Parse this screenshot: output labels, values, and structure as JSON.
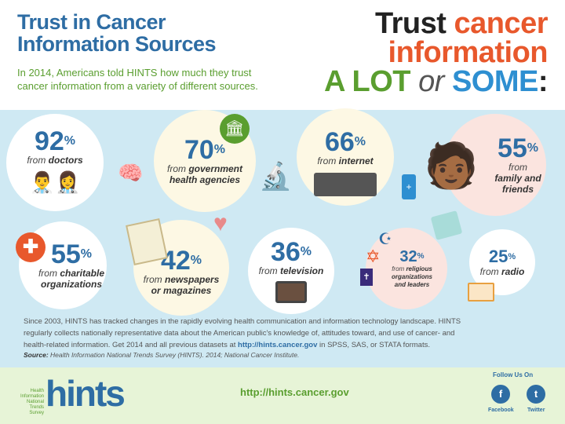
{
  "header": {
    "title_line1": "Trust in Cancer",
    "title_line2": "Information Sources",
    "intro": "In 2014, Americans told HINTS how much they trust cancer information from a variety of different sources.",
    "headline": {
      "w1": "Trust",
      "w2": "cancer",
      "w3": "information",
      "w4": "A LOT",
      "w5": "or",
      "w6": "SOME",
      "w7": ":"
    }
  },
  "sources": [
    {
      "pct": "92",
      "unit": "%",
      "from": "from",
      "label": "doctors"
    },
    {
      "pct": "70",
      "unit": "%",
      "from": "from",
      "label": "government health agencies"
    },
    {
      "pct": "66",
      "unit": "%",
      "from": "from",
      "label": "internet"
    },
    {
      "pct": "55",
      "unit": "%",
      "from": "from",
      "label": "family and friends"
    },
    {
      "pct": "55",
      "unit": "%",
      "from": "from",
      "label": "charitable organizations"
    },
    {
      "pct": "42",
      "unit": "%",
      "from": "from",
      "label": "newspapers or magazines"
    },
    {
      "pct": "36",
      "unit": "%",
      "from": "from",
      "label": "television"
    },
    {
      "pct": "32",
      "unit": "%",
      "from": "from",
      "label": "religious organizations and leaders"
    },
    {
      "pct": "25",
      "unit": "%",
      "from": "from",
      "label": "radio"
    }
  ],
  "body": {
    "text1": "Since 2003, HINTS has tracked changes in the rapidly evolving health communication and information technology landscape. HINTS regularly collects nationally representative data about the American public's knowledge of, attitudes toward, and use of cancer- and health-related information. Get 2014 and all previous datasets at ",
    "link": "http://hints.cancer.gov",
    "text2": " in SPSS, SAS, or STATA formats.",
    "source_label": "Source:",
    "source": " Health Information National Trends Survey (HINTS). 2014; National Cancer Institute."
  },
  "footer": {
    "logo_small": "Health Information National Trends Survey",
    "logo": "hints",
    "url": "http://hints.cancer.gov",
    "follow": "Follow Us On",
    "facebook": "Facebook",
    "twitter": "Twitter"
  },
  "colors": {
    "blue": "#2e6da4",
    "green": "#5a9e2f",
    "orange": "#e8582c",
    "band": "#cfe9f3",
    "footer": "#e7f4d7"
  }
}
